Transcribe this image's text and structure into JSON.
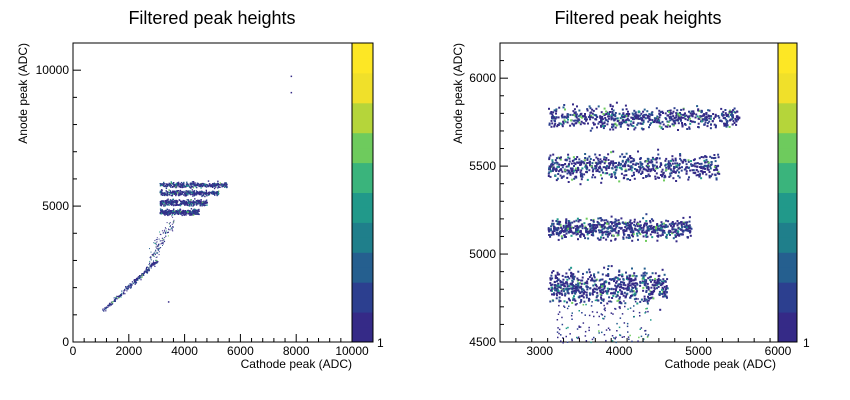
{
  "chart_data": [
    {
      "type": "heatmap",
      "title": "Filtered peak heights",
      "xlabel": "Cathode peak (ADC)",
      "ylabel": "Anode peak (ADC)",
      "xlim": [
        0,
        10000
      ],
      "ylim": [
        0,
        11000
      ],
      "xticks": [
        "0",
        "2000",
        "4000",
        "6000",
        "8000",
        "10000"
      ],
      "yticks": [
        "0",
        "5000",
        "10000"
      ],
      "colorbar_label": "1",
      "colormap": [
        "#352a87",
        "#2c3f8f",
        "#255f8f",
        "#1f7f8b",
        "#21998a",
        "#3ab47c",
        "#6ecb5d",
        "#b5d53a",
        "#f0e02a",
        "#fde725"
      ],
      "features": {
        "diagonal_band": {
          "x": [
            1100,
            3000
          ],
          "y": [
            1200,
            3000
          ]
        },
        "horizontal_bands": [
          {
            "y": 4800,
            "x": [
              3100,
              4500
            ]
          },
          {
            "y": 5150,
            "x": [
              3100,
              4800
            ]
          },
          {
            "y": 5500,
            "x": [
              3100,
              5200
            ]
          },
          {
            "y": 5800,
            "x": [
              3100,
              5500
            ]
          }
        ],
        "sparse_points": [
          {
            "x": 7800,
            "y": 9800
          },
          {
            "x": 7800,
            "y": 9200
          },
          {
            "x": 3400,
            "y": 1500
          }
        ]
      }
    },
    {
      "type": "heatmap",
      "title": "Filtered peak heights",
      "xlabel": "Cathode peak (ADC)",
      "ylabel": "Anode peak (ADC)",
      "xlim": [
        2500,
        6000
      ],
      "ylim": [
        4500,
        6200
      ],
      "xticks": [
        "3000",
        "4000",
        "5000",
        "6000"
      ],
      "yticks": [
        "4500",
        "5000",
        "5500",
        "6000"
      ],
      "colorbar_label": "1",
      "colormap": [
        "#352a87",
        "#2c3f8f",
        "#255f8f",
        "#1f7f8b",
        "#21998a",
        "#3ab47c",
        "#6ecb5d",
        "#b5d53a",
        "#f0e02a",
        "#fde725"
      ],
      "bands": [
        {
          "y": 4820,
          "x": [
            3100,
            4600
          ],
          "spread": 60
        },
        {
          "y": 5150,
          "x": [
            3100,
            4900
          ],
          "spread": 40
        },
        {
          "y": 5500,
          "x": [
            3100,
            5250
          ],
          "spread": 50
        },
        {
          "y": 5780,
          "x": [
            3100,
            5500
          ],
          "spread": 40
        }
      ]
    }
  ]
}
